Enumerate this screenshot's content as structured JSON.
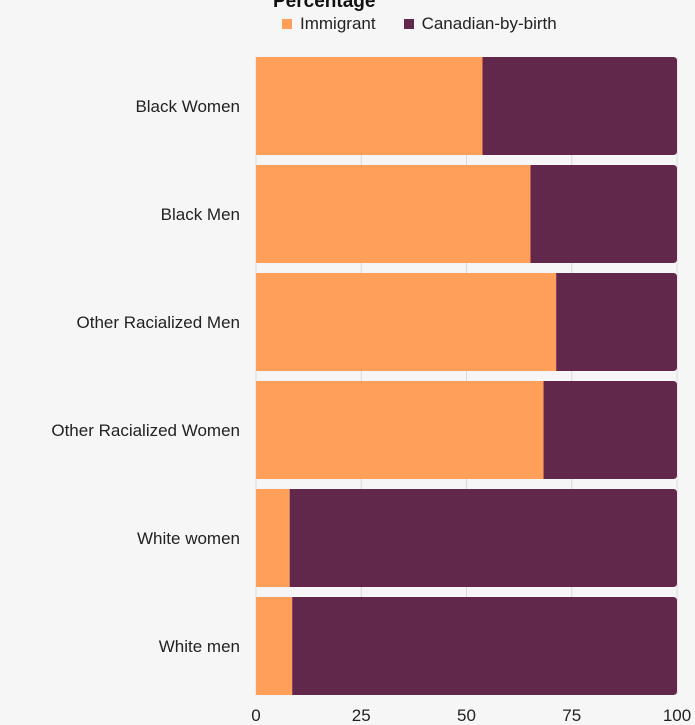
{
  "chart_data": {
    "type": "bar",
    "orientation": "horizontal",
    "stacked": true,
    "title": "Percentage",
    "xlabel": "",
    "ylabel": "",
    "xlim": [
      0,
      100
    ],
    "xticks": [
      0,
      25,
      50,
      75,
      100
    ],
    "grid": true,
    "legend_position": "top-center",
    "categories": [
      "Black Women",
      "Black Men",
      "Other Racialized Men",
      "Other Racialized Women",
      "White women",
      "White men"
    ],
    "series": [
      {
        "name": "Immigrant",
        "color": "#ff9f5a",
        "values": [
          53.8,
          65.2,
          71.3,
          68.3,
          8.0,
          8.6
        ]
      },
      {
        "name": "Canadian-by-birth",
        "color": "#61284b",
        "values": [
          46.2,
          34.8,
          28.7,
          31.7,
          92.0,
          91.4
        ]
      }
    ]
  }
}
